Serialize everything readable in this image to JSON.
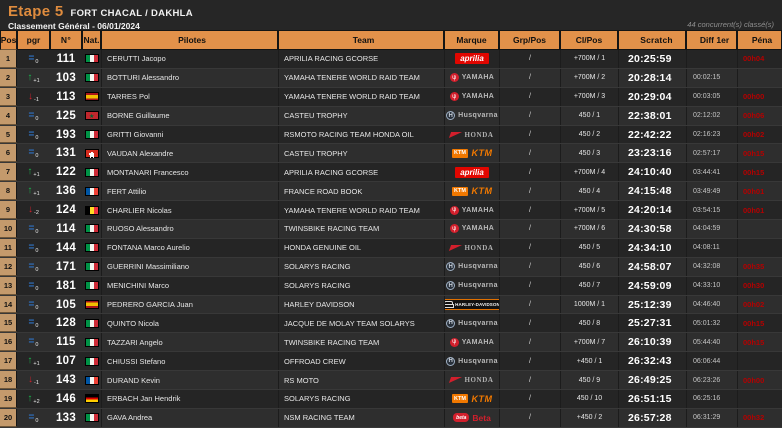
{
  "header": {
    "etape": "Etape 5",
    "location": "FORT CHACAL / DAKHLA",
    "subtitle": "Classement Général - 06/01/2024",
    "classified": "44 concurrent(s) classé(s)"
  },
  "columns": [
    "Pos",
    "pgr",
    "N°",
    "Nat.",
    "Pilotes",
    "Team",
    "Marque",
    "Grp/Pos",
    "Cl/Pos",
    "Scratch",
    "Diff 1er",
    "Péna"
  ],
  "colors": {
    "accent_orange": "#e2914a",
    "title_orange": "#df8c3e",
    "penalty_red": "#b40000",
    "progress_up_green": "#19b24b",
    "progress_down_red": "#d41f2c",
    "progress_same_blue": "#2f72c4",
    "pos_column_tan": "#c49a6c"
  },
  "brands": {
    "aprilia": "aprilia",
    "yamaha": "YAMAHA",
    "husqvarna": "Husqvarna",
    "honda": "HONDA",
    "ktm": "KTM",
    "harley": "HARLEY-DAVIDSON",
    "beta": "Beta"
  },
  "rows": [
    {
      "pos": "1",
      "pgr_dir": "same",
      "pgr_val": "0",
      "num": "111",
      "nat": "it",
      "pilot": "CERUTTI Jacopo",
      "team": "APRILIA RACING GCORSE",
      "marque": "aprilia",
      "grp": "/",
      "cl": "+700M / 1",
      "scratch": "20:25:59",
      "diff": "",
      "pena": "00h04"
    },
    {
      "pos": "2",
      "pgr_dir": "up",
      "pgr_val": "+1",
      "num": "103",
      "nat": "it",
      "pilot": "BOTTURI Alessandro",
      "team": "YAMAHA TENERE WORLD RAID TEAM",
      "marque": "yamaha",
      "grp": "/",
      "cl": "+700M / 2",
      "scratch": "20:28:14",
      "diff": "00:02:15",
      "pena": ""
    },
    {
      "pos": "3",
      "pgr_dir": "down",
      "pgr_val": "-1",
      "num": "113",
      "nat": "es",
      "pilot": "TARRES Pol",
      "team": "YAMAHA TENERE WORLD RAID TEAM",
      "marque": "yamaha",
      "grp": "/",
      "cl": "+700M / 3",
      "scratch": "20:29:04",
      "diff": "00:03:05",
      "pena": "00h00"
    },
    {
      "pos": "4",
      "pgr_dir": "same",
      "pgr_val": "0",
      "num": "125",
      "nat": "ma",
      "pilot": "BORNE Guillaume",
      "team": "CASTEU TROPHY",
      "marque": "husqvarna",
      "grp": "/",
      "cl": "450 / 1",
      "scratch": "22:38:01",
      "diff": "02:12:02",
      "pena": "00h06"
    },
    {
      "pos": "5",
      "pgr_dir": "same",
      "pgr_val": "0",
      "num": "193",
      "nat": "it",
      "pilot": "GRITTI Giovanni",
      "team": "RSMOTO RACING TEAM HONDA OIL",
      "marque": "honda",
      "grp": "/",
      "cl": "450 / 2",
      "scratch": "22:42:22",
      "diff": "02:16:23",
      "pena": "00h02"
    },
    {
      "pos": "6",
      "pgr_dir": "same",
      "pgr_val": "0",
      "num": "131",
      "nat": "ch",
      "pilot": "VAUDAN Alexandre",
      "team": "CASTEU TROPHY",
      "marque": "ktm",
      "grp": "/",
      "cl": "450 / 3",
      "scratch": "23:23:16",
      "diff": "02:57:17",
      "pena": "00h15"
    },
    {
      "pos": "7",
      "pgr_dir": "up",
      "pgr_val": "+1",
      "num": "122",
      "nat": "it",
      "pilot": "MONTANARI Francesco",
      "team": "APRILIA RACING GCORSE",
      "marque": "aprilia",
      "grp": "/",
      "cl": "+700M / 4",
      "scratch": "24:10:40",
      "diff": "03:44:41",
      "pena": "00h15"
    },
    {
      "pos": "8",
      "pgr_dir": "up",
      "pgr_val": "+1",
      "num": "136",
      "nat": "fr",
      "pilot": "FERT Attilio",
      "team": "FRANCE ROAD BOOK",
      "marque": "ktm",
      "grp": "/",
      "cl": "450 / 4",
      "scratch": "24:15:48",
      "diff": "03:49:49",
      "pena": "00h01"
    },
    {
      "pos": "9",
      "pgr_dir": "down",
      "pgr_val": "-2",
      "num": "124",
      "nat": "be",
      "pilot": "CHARLIER Nicolas",
      "team": "YAMAHA TENERE WORLD RAID TEAM",
      "marque": "yamaha",
      "grp": "/",
      "cl": "+700M / 5",
      "scratch": "24:20:14",
      "diff": "03:54:15",
      "pena": "00h01"
    },
    {
      "pos": "10",
      "pgr_dir": "same",
      "pgr_val": "0",
      "num": "114",
      "nat": "it",
      "pilot": "RUOSO Alessandro",
      "team": "TWINSBIKE RACING TEAM",
      "marque": "yamaha",
      "grp": "/",
      "cl": "+700M / 6",
      "scratch": "24:30:58",
      "diff": "04:04:59",
      "pena": ""
    },
    {
      "pos": "11",
      "pgr_dir": "same",
      "pgr_val": "0",
      "num": "144",
      "nat": "it",
      "pilot": "FONTANA Marco Aurelio",
      "team": "HONDA GENUINE OIL",
      "marque": "honda",
      "grp": "/",
      "cl": "450 / 5",
      "scratch": "24:34:10",
      "diff": "04:08:11",
      "pena": ""
    },
    {
      "pos": "12",
      "pgr_dir": "same",
      "pgr_val": "0",
      "num": "171",
      "nat": "it",
      "pilot": "GUERRINI Massimiliano",
      "team": "SOLARYS RACING",
      "marque": "husqvarna",
      "grp": "/",
      "cl": "450 / 6",
      "scratch": "24:58:07",
      "diff": "04:32:08",
      "pena": "00h35"
    },
    {
      "pos": "13",
      "pgr_dir": "same",
      "pgr_val": "0",
      "num": "181",
      "nat": "it",
      "pilot": "MENICHINI Marco",
      "team": "SOLARYS RACING",
      "marque": "husqvarna",
      "grp": "/",
      "cl": "450 / 7",
      "scratch": "24:59:09",
      "diff": "04:33:10",
      "pena": "00h30"
    },
    {
      "pos": "14",
      "pgr_dir": "same",
      "pgr_val": "0",
      "num": "105",
      "nat": "es",
      "pilot": "PEDRERO GARCIA Juan",
      "team": "HARLEY DAVIDSON",
      "marque": "harley",
      "grp": "/",
      "cl": "1000M / 1",
      "scratch": "25:12:39",
      "diff": "04:46:40",
      "pena": "00h02"
    },
    {
      "pos": "15",
      "pgr_dir": "same",
      "pgr_val": "0",
      "num": "128",
      "nat": "it",
      "pilot": "QUINTO Nicola",
      "team": "JACQUE DE MOLAY TEAM SOLARYS",
      "marque": "husqvarna",
      "grp": "/",
      "cl": "450 / 8",
      "scratch": "25:27:31",
      "diff": "05:01:32",
      "pena": "00h15"
    },
    {
      "pos": "16",
      "pgr_dir": "same",
      "pgr_val": "0",
      "num": "115",
      "nat": "it",
      "pilot": "TAZZARI Angelo",
      "team": "TWINSBIKE RACING TEAM",
      "marque": "yamaha",
      "grp": "/",
      "cl": "+700M / 7",
      "scratch": "26:10:39",
      "diff": "05:44:40",
      "pena": "00h15"
    },
    {
      "pos": "17",
      "pgr_dir": "up",
      "pgr_val": "+1",
      "num": "107",
      "nat": "it",
      "pilot": "CHIUSSI Stefano",
      "team": "OFFROAD CREW",
      "marque": "husqvarna",
      "grp": "/",
      "cl": "+450 / 1",
      "scratch": "26:32:43",
      "diff": "06:06:44",
      "pena": ""
    },
    {
      "pos": "18",
      "pgr_dir": "down",
      "pgr_val": "-1",
      "num": "143",
      "nat": "fr",
      "pilot": "DURAND Kevin",
      "team": "RS MOTO",
      "marque": "honda",
      "grp": "/",
      "cl": "450 / 9",
      "scratch": "26:49:25",
      "diff": "06:23:26",
      "pena": "00h00"
    },
    {
      "pos": "19",
      "pgr_dir": "up",
      "pgr_val": "+2",
      "num": "146",
      "nat": "de",
      "pilot": "ERBACH Jan Hendrik",
      "team": "SOLARYS RACING",
      "marque": "ktm",
      "grp": "/",
      "cl": "450 / 10",
      "scratch": "26:51:15",
      "diff": "06:25:16",
      "pena": ""
    },
    {
      "pos": "20",
      "pgr_dir": "same",
      "pgr_val": "0",
      "num": "133",
      "nat": "it",
      "pilot": "GAVA Andrea",
      "team": "NSM RACING TEAM",
      "marque": "beta",
      "grp": "/",
      "cl": "+450 / 2",
      "scratch": "26:57:28",
      "diff": "06:31:29",
      "pena": "00h32"
    }
  ]
}
